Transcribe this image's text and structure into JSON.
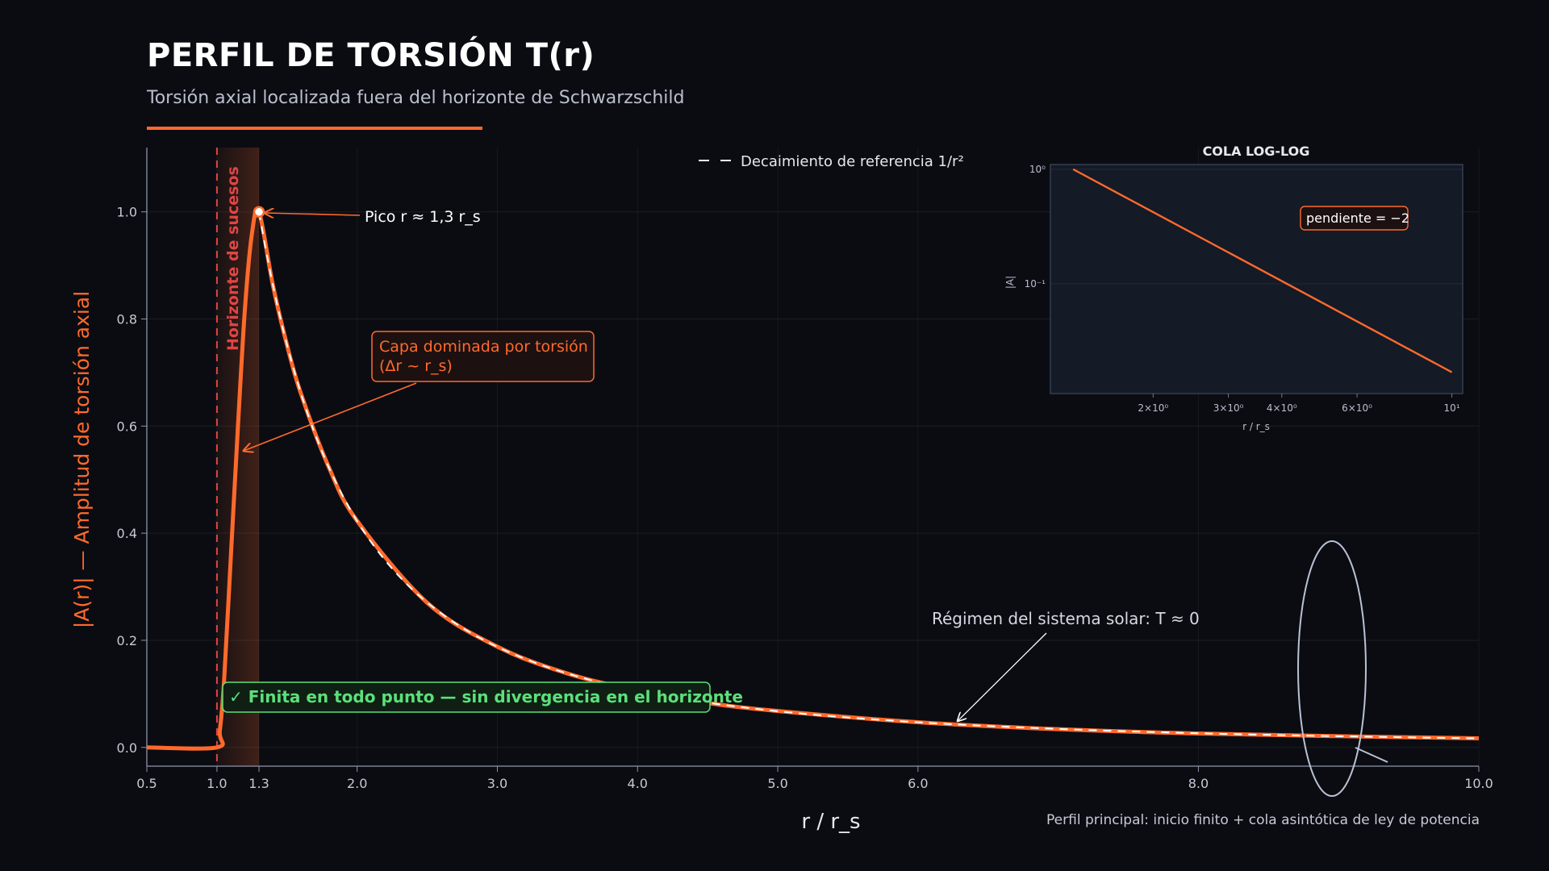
{
  "header": {
    "title": "PERFIL DE TORSIÓN  T(r)",
    "subtitle": "Torsión axial localizada fuera del horizonte de Schwarzschild"
  },
  "footnote": "Perfil principal: inicio finito + cola asintótica de ley de potencia",
  "colors": {
    "background": "#0b0c12",
    "accent": "#ff6a2c",
    "reference": "#ffffff",
    "horizon": "#e04545",
    "success": "#5be07a",
    "inset_bg": "#141a26"
  },
  "chart_data": [
    {
      "type": "line",
      "title": "",
      "xlabel": "r / r_s",
      "ylabel": "|A(r)| — Amplitud de torsión axial",
      "xlim": [
        0.5,
        10.0
      ],
      "ylim": [
        -0.035,
        1.12
      ],
      "x_ticks": [
        "0.5",
        "1.0",
        "1.3",
        "2.0",
        "3.0",
        "4.0",
        "5.0",
        "6.0",
        "8.0",
        "10.0"
      ],
      "y_ticks": [
        "0.0",
        "0.2",
        "0.4",
        "0.6",
        "0.8",
        "1.0"
      ],
      "grid": true,
      "legend": {
        "position": "top-center",
        "entries": [
          "Decaimiento de referencia 1/r²"
        ]
      },
      "series": [
        {
          "name": "",
          "style": "solid",
          "x": [
            0.5,
            1.0,
            1.02,
            1.05,
            1.1,
            1.15,
            1.2,
            1.25,
            1.3,
            1.4,
            1.5,
            1.6,
            1.8,
            2.0,
            2.5,
            3.0,
            3.5,
            4.0,
            4.5,
            5.0,
            6.0,
            7.0,
            8.0,
            9.0,
            10.0
          ],
          "y": [
            0.0,
            0.0,
            0.03,
            0.12,
            0.36,
            0.6,
            0.82,
            0.96,
            1.0,
            0.862,
            0.751,
            0.66,
            0.522,
            0.423,
            0.27,
            0.188,
            0.138,
            0.106,
            0.083,
            0.068,
            0.047,
            0.034,
            0.026,
            0.021,
            0.017
          ]
        },
        {
          "name": "Decaimiento de referencia 1/r²",
          "style": "dashed",
          "formula": "1.69 / r^2",
          "x_range": [
            1.3,
            10.0
          ]
        }
      ],
      "horizon_line": {
        "x": 1.0,
        "label": "Horizonte de sucesos"
      },
      "shaded_band": {
        "x_range": [
          1.0,
          1.3
        ]
      },
      "peak": {
        "x": 1.3,
        "y": 1.0
      },
      "annotations": {
        "peak": "Pico  r ≈ 1,3 r_s",
        "layer": [
          "Capa dominada por torsión",
          "(Δr ~ r_s)"
        ],
        "finite": "✓  Finita en todo punto — sin divergencia en el horizonte",
        "solar": "Régimen del sistema solar:  T ≈ 0"
      }
    },
    {
      "type": "line",
      "title": "COLA LOG-LOG",
      "xlabel": "r / r_s",
      "ylabel": "|A|",
      "x_scale": "log",
      "y_scale": "log",
      "x_ticks": [
        "2×10⁰",
        "3×10⁰",
        "4×10⁰",
        "6×10⁰",
        "10¹"
      ],
      "y_ticks": [
        "10⁰",
        "10⁻¹"
      ],
      "series": [
        {
          "name": "",
          "x": [
            1.3,
            10.0
          ],
          "y": [
            1.0,
            0.0169
          ]
        }
      ],
      "annotation": "pendiente = −2"
    }
  ]
}
